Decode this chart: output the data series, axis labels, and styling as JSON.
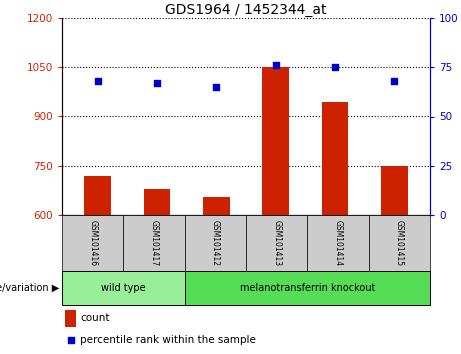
{
  "title": "GDS1964 / 1452344_at",
  "samples": [
    "GSM101416",
    "GSM101417",
    "GSM101412",
    "GSM101413",
    "GSM101414",
    "GSM101415"
  ],
  "bar_values": [
    720,
    680,
    655,
    1050,
    945,
    750
  ],
  "dot_values": [
    68,
    67,
    65,
    76,
    75,
    68
  ],
  "ylim_left": [
    600,
    1200
  ],
  "ylim_right": [
    0,
    100
  ],
  "yticks_left": [
    600,
    750,
    900,
    1050,
    1200
  ],
  "yticks_right": [
    0,
    25,
    50,
    75,
    100
  ],
  "bar_color": "#cc2200",
  "dot_color": "#0000cc",
  "groups": [
    {
      "label": "wild type",
      "indices": [
        0,
        1
      ],
      "color": "#99ee99"
    },
    {
      "label": "melanotransferrin knockout",
      "indices": [
        2,
        3,
        4,
        5
      ],
      "color": "#55dd55"
    }
  ],
  "group_row_label": "genotype/variation",
  "legend_bar_label": "count",
  "legend_dot_label": "percentile rank within the sample",
  "background_color": "#ffffff",
  "plot_bg_color": "#ffffff",
  "sample_area_color": "#cccccc",
  "left_axis_color": "#cc2200",
  "right_axis_color": "#0000cc"
}
